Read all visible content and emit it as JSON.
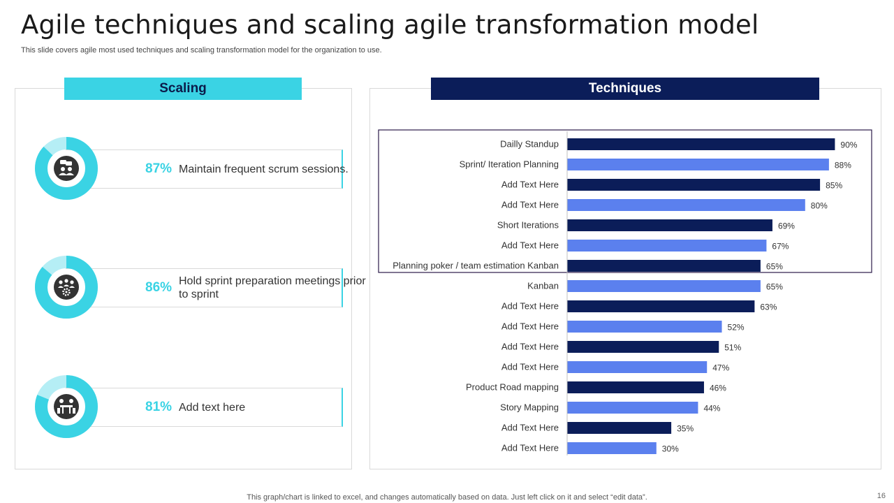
{
  "slide": {
    "title": "Agile techniques and scaling agile transformation model",
    "subtitle": "This slide covers agile most used techniques and scaling transformation model for the organization to use.",
    "footer": "This graph/chart is linked to excel,  and changes automatically based on data. Just left click on it and select “edit data”.",
    "page_number": "16"
  },
  "colors": {
    "accent_cyan": "#3ad3e4",
    "accent_cyan_light": "#b5eef5",
    "navy": "#0b1d59",
    "periwinkle": "#5b80ee"
  },
  "scaling": {
    "header": "Scaling",
    "items": [
      {
        "percent": "87%",
        "value": 0.87,
        "text": "Maintain frequent scrum sessions.",
        "icon": "team-chat-icon"
      },
      {
        "percent": "86%",
        "value": 0.86,
        "text": "Hold sprint preparation meetings prior to sprint",
        "icon": "team-gear-icon"
      },
      {
        "percent": "81%",
        "value": 0.81,
        "text": "Add text here",
        "icon": "meeting-table-icon"
      }
    ]
  },
  "techniques": {
    "header": "Techniques"
  },
  "chart_data": {
    "type": "bar",
    "orientation": "horizontal",
    "title": "Techniques",
    "categories": [
      "Dailly Standup",
      "Sprint/ Iteration Planning",
      "Add Text Here",
      "Add Text Here",
      "Short Iterations",
      "Add Text Here",
      "Planning poker / team estimation Kanban",
      "Kanban",
      "Add Text Here",
      "Add Text Here",
      "Add Text Here",
      "Add Text Here",
      "Product Road mapping",
      "Story Mapping",
      "Add Text Here",
      "Add Text Here"
    ],
    "values": [
      90,
      88,
      85,
      80,
      69,
      67,
      65,
      65,
      63,
      52,
      51,
      47,
      46,
      44,
      35,
      30
    ],
    "data_labels": [
      "90%",
      "88%",
      "85%",
      "80%",
      "69%",
      "67%",
      "65%",
      "65%",
      "63%",
      "52%",
      "51%",
      "47%",
      "46%",
      "44%",
      "35%",
      "30%"
    ],
    "xlim": [
      0,
      100
    ],
    "xlabel": "",
    "ylabel": "",
    "grid": false,
    "legend": "none",
    "highlight_group": {
      "from_index": 0,
      "to_index": 6,
      "outline_color": "#2b1a4a"
    }
  }
}
